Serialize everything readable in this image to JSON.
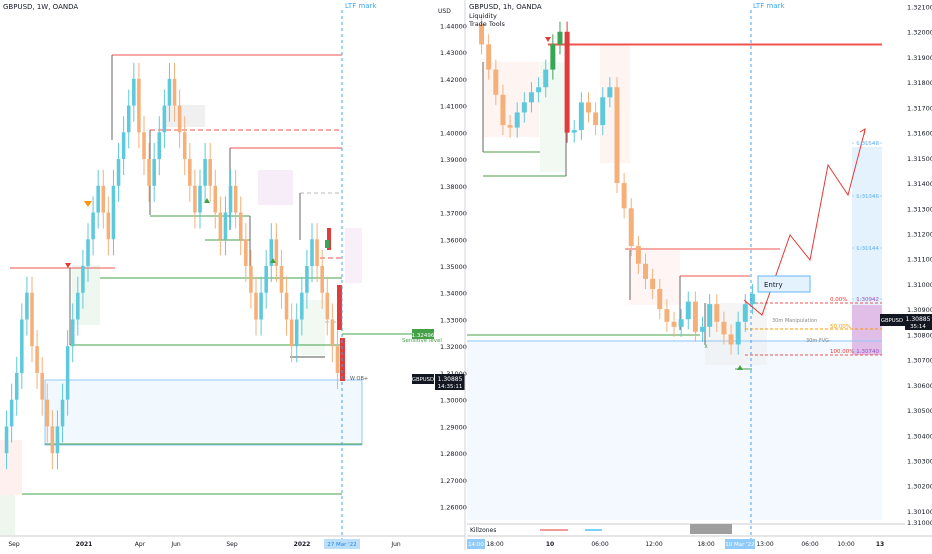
{
  "colors": {
    "up": "#5fc9dc",
    "down": "#f5b07a",
    "strong_up": "#3aa655",
    "strong_down": "#e03c3c",
    "level_red": "#ef5350",
    "level_green": "#43a047",
    "level_gray": "#555555",
    "ltf_line": "#42a5f5",
    "axis_text": "#131722",
    "grid": "#e0e3eb"
  },
  "left_panel": {
    "title": "GBPUSD, 1W, OANDA",
    "ltf_mark": "LTF mark",
    "price_axis_ticks": [
      "1.44000",
      "1.43000",
      "1.42000",
      "1.41000",
      "1.40000",
      "1.39000",
      "1.38000",
      "1.37000",
      "1.36000",
      "1.35000",
      "1.34000",
      "1.33000",
      "1.32000",
      "1.31000",
      "1.30000",
      "1.29000",
      "1.28000",
      "1.27000",
      "1.26000"
    ],
    "time_axis_labels": [
      "Sep",
      "2021",
      "Apr",
      "Jun",
      "Sep",
      "2022",
      "27 Mar '22",
      "Jun"
    ],
    "level_label": "1.32496",
    "sensitive_label": "Sensitive level",
    "wob_label": "W OB+",
    "symbol_badge": "GBPUSD",
    "price_badge": "1.30885",
    "countdown_badge": "14:35:11"
  },
  "right_panel": {
    "title": "GBPUSD, 1h, OANDA",
    "indicators": [
      "Liquidity",
      "Trade Tools"
    ],
    "ltf_mark": "LTF mark",
    "currency_label": "USD",
    "price_axis_ticks": [
      "1.32100",
      "1.32000",
      "1.31900",
      "1.31800",
      "1.31700",
      "1.31600",
      "1.31500",
      "1.31400",
      "1.31300",
      "1.31200",
      "1.31100",
      "1.31000",
      "1.30900",
      "1.30800",
      "1.30700",
      "1.30600",
      "1.30500",
      "1.30400",
      "1.30300",
      "1.30200",
      "1.30100",
      "1.31000"
    ],
    "time_axis_labels": [
      "14:00",
      "18:00",
      "10",
      "06:00",
      "12:00",
      "18:00",
      "10 Mar '22",
      "13:00",
      "06:00",
      "10:00",
      "13"
    ],
    "entry_label": "Entry",
    "fib_labels": [
      "0.00%",
      "50.00%",
      "100.00%"
    ],
    "manipulation_label": "30m Manipulation",
    "fvg_label": "30m FVG-",
    "target_prices": [
      "1.31548",
      "1.31346",
      "1.31144",
      "1.30942",
      "1.30740"
    ],
    "symbol_badge": "GBPUSD",
    "price_badge": "1.30885",
    "countdown_badge": "35:14",
    "killzones_label": "Killzones"
  },
  "chart_data": [
    {
      "type": "candlestick",
      "title": "GBPUSD, 1W, OANDA",
      "ylim": [
        1.255,
        1.445
      ],
      "ylabel": "",
      "x_labels": [
        "Sep",
        "2021",
        "Apr",
        "Jun",
        "Sep",
        "2022",
        "27 Mar '22",
        "Jun"
      ],
      "marked_levels": {
        "sensitive_level": 1.32496,
        "last_price": 1.30885
      },
      "close_series_estimate": [
        1.29,
        1.3,
        1.31,
        1.33,
        1.34,
        1.32,
        1.31,
        1.3,
        1.29,
        1.28,
        1.29,
        1.3,
        1.32,
        1.33,
        1.34,
        1.35,
        1.36,
        1.37,
        1.38,
        1.37,
        1.36,
        1.38,
        1.39,
        1.4,
        1.41,
        1.42,
        1.4,
        1.39,
        1.38,
        1.39,
        1.4,
        1.41,
        1.42,
        1.41,
        1.4,
        1.39,
        1.38,
        1.37,
        1.38,
        1.39,
        1.38,
        1.37,
        1.36,
        1.37,
        1.38,
        1.37,
        1.36,
        1.35,
        1.34,
        1.33,
        1.34,
        1.35,
        1.36,
        1.35,
        1.34,
        1.33,
        1.32,
        1.33,
        1.34,
        1.35,
        1.36,
        1.35,
        1.34,
        1.33,
        1.32,
        1.31
      ]
    },
    {
      "type": "candlestick",
      "title": "GBPUSD, 1h, OANDA",
      "ylim": [
        1.3006,
        1.3211
      ],
      "ylabel": "USD",
      "x_labels": [
        "14:00",
        "18:00",
        "10",
        "06:00",
        "12:00",
        "18:00",
        "10 Mar '22",
        "13:00",
        "06:00",
        "10:00",
        "13"
      ],
      "marked_levels": {
        "last_price": 1.30885,
        "fib_0": 1.30942,
        "fib_100": 1.3074
      },
      "targets": [
        1.31548,
        1.31346,
        1.31144,
        1.30942,
        1.3074
      ],
      "close_series_estimate": [
        1.3195,
        1.3185,
        1.3175,
        1.3163,
        1.3162,
        1.3168,
        1.3172,
        1.3176,
        1.3178,
        1.3185,
        1.3195,
        1.32,
        1.316,
        1.3161,
        1.3172,
        1.3168,
        1.3163,
        1.3174,
        1.3178,
        1.314,
        1.313,
        1.3115,
        1.3108,
        1.3102,
        1.3098,
        1.309,
        1.3085,
        1.3083,
        1.3086,
        1.3093,
        1.3081,
        1.3083,
        1.3092,
        1.3085,
        1.308,
        1.3076,
        1.3085,
        1.3092,
        1.3096
      ]
    }
  ]
}
